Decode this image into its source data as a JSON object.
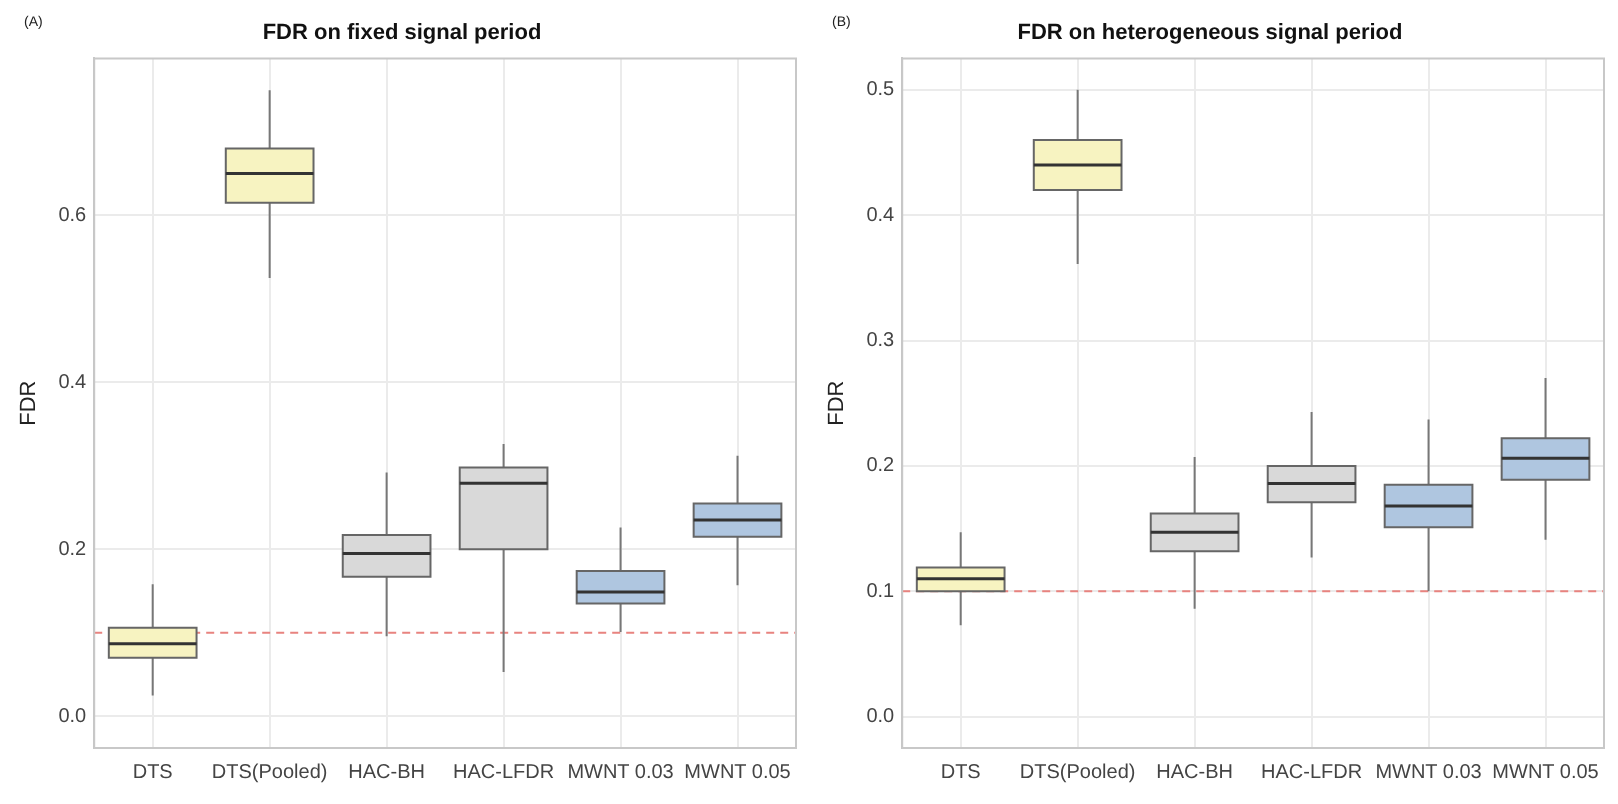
{
  "chart_data": [
    {
      "type": "box",
      "title": "FDR on fixed signal period",
      "ylabel": "FDR",
      "annotations": [
        "(A)"
      ],
      "categories": [
        "DTS",
        "DTS(Pooled)",
        "HAC-BH",
        "HAC-LFDR",
        "MWNT 0.03",
        "MWNT 0.05"
      ],
      "colors": [
        "#f7f3c1",
        "#f7f3c1",
        "#d9d9d9",
        "#d9d9d9",
        "#afc6e0",
        "#afc6e0"
      ],
      "boxes": [
        {
          "low": 0.025,
          "q1": 0.07,
          "median": 0.087,
          "q3": 0.106,
          "high": 0.158
        },
        {
          "low": 0.525,
          "q1": 0.615,
          "median": 0.65,
          "q3": 0.68,
          "high": 0.75
        },
        {
          "low": 0.096,
          "q1": 0.167,
          "median": 0.195,
          "q3": 0.217,
          "high": 0.292
        },
        {
          "low": 0.053,
          "q1": 0.2,
          "median": 0.279,
          "q3": 0.298,
          "high": 0.326
        },
        {
          "low": 0.101,
          "q1": 0.135,
          "median": 0.149,
          "q3": 0.174,
          "high": 0.226
        },
        {
          "low": 0.157,
          "q1": 0.215,
          "median": 0.235,
          "q3": 0.255,
          "high": 0.312
        }
      ],
      "ylim": [
        -0.038,
        0.788
      ],
      "yticks": [
        {
          "value": 0,
          "label": "0.0"
        },
        0.2,
        0.4,
        0.6
      ],
      "ref_lines": [
        {
          "axis": "y",
          "value": 0.1,
          "color": "#e8837f",
          "line_style": "dashed"
        }
      ],
      "grid": true
    },
    {
      "type": "box",
      "title": "FDR on heterogeneous signal period",
      "ylabel": "FDR",
      "annotations": [
        "(B)"
      ],
      "categories": [
        "DTS",
        "DTS(Pooled)",
        "HAC-BH",
        "HAC-LFDR",
        "MWNT 0.03",
        "MWNT 0.05"
      ],
      "colors": [
        "#f7f3c1",
        "#f7f3c1",
        "#d9d9d9",
        "#d9d9d9",
        "#afc6e0",
        "#afc6e0"
      ],
      "boxes": [
        {
          "low": 0.073,
          "q1": 0.1,
          "median": 0.11,
          "q3": 0.119,
          "high": 0.147
        },
        {
          "low": 0.361,
          "q1": 0.42,
          "median": 0.44,
          "q3": 0.46,
          "high": 0.5
        },
        {
          "low": 0.086,
          "q1": 0.132,
          "median": 0.147,
          "q3": 0.162,
          "high": 0.207
        },
        {
          "low": 0.127,
          "q1": 0.171,
          "median": 0.186,
          "q3": 0.2,
          "high": 0.243
        },
        {
          "low": 0.1,
          "q1": 0.151,
          "median": 0.168,
          "q3": 0.185,
          "high": 0.237
        },
        {
          "low": 0.141,
          "q1": 0.189,
          "median": 0.206,
          "q3": 0.222,
          "high": 0.27
        }
      ],
      "ylim": [
        -0.025,
        0.525
      ],
      "yticks": [
        {
          "value": 0,
          "label": "0.0"
        },
        0.1,
        0.2,
        0.3,
        0.4,
        0.5
      ],
      "ref_lines": [
        {
          "axis": "y",
          "value": 0.1,
          "color": "#e8837f",
          "line_style": "dashed"
        }
      ],
      "grid": true
    }
  ]
}
